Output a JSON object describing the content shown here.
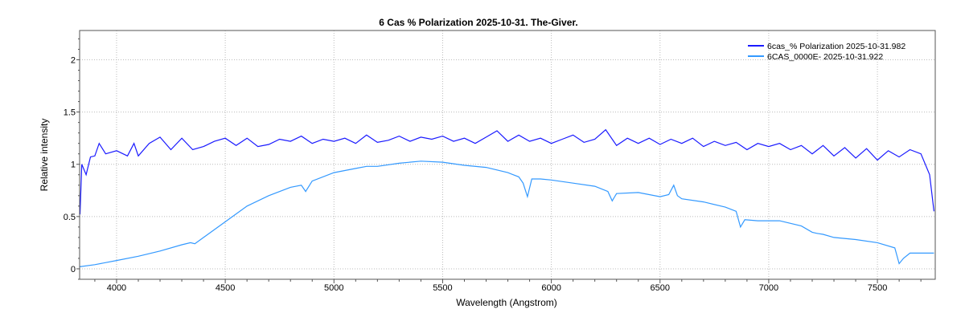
{
  "chart_data": {
    "type": "line",
    "title": "6 Cas  % Polarization  2025-10-31.  The-Giver.",
    "xlabel": "Wavelength (Angstrom)",
    "ylabel": "Relative intensity",
    "xlim": [
      3830,
      7766
    ],
    "ylim": [
      -0.1,
      2.28
    ],
    "xticks": [
      4000,
      4500,
      5000,
      5500,
      6000,
      6500,
      7000,
      7500
    ],
    "yticks": [
      0,
      0.5,
      1,
      1.5,
      2
    ],
    "ytick_labels": [
      "0",
      "0.5",
      "1",
      "1.5",
      "2"
    ],
    "grid": true,
    "legend_position": "top-right",
    "series": [
      {
        "name": "6cas_% Polarization  2025-10-31.982",
        "color": "#1a1aff",
        "x": [
          3832,
          3840,
          3860,
          3880,
          3900,
          3920,
          3950,
          4000,
          4050,
          4080,
          4100,
          4150,
          4200,
          4250,
          4300,
          4350,
          4400,
          4450,
          4500,
          4550,
          4600,
          4650,
          4700,
          4750,
          4800,
          4850,
          4900,
          4950,
          5000,
          5050,
          5100,
          5150,
          5200,
          5250,
          5300,
          5350,
          5400,
          5450,
          5500,
          5550,
          5600,
          5650,
          5700,
          5750,
          5800,
          5850,
          5900,
          5950,
          6000,
          6050,
          6100,
          6150,
          6200,
          6250,
          6300,
          6350,
          6400,
          6450,
          6500,
          6550,
          6600,
          6650,
          6700,
          6750,
          6800,
          6850,
          6900,
          6950,
          7000,
          7050,
          7100,
          7150,
          7200,
          7250,
          7300,
          7350,
          7400,
          7450,
          7500,
          7550,
          7600,
          7650,
          7700,
          7740,
          7760
        ],
        "y": [
          0.52,
          1.0,
          0.9,
          1.07,
          1.08,
          1.2,
          1.1,
          1.13,
          1.08,
          1.2,
          1.08,
          1.2,
          1.26,
          1.14,
          1.25,
          1.14,
          1.17,
          1.22,
          1.25,
          1.18,
          1.25,
          1.17,
          1.19,
          1.24,
          1.22,
          1.27,
          1.2,
          1.24,
          1.22,
          1.25,
          1.2,
          1.28,
          1.21,
          1.23,
          1.27,
          1.22,
          1.26,
          1.24,
          1.27,
          1.22,
          1.25,
          1.2,
          1.26,
          1.32,
          1.22,
          1.28,
          1.22,
          1.25,
          1.2,
          1.24,
          1.28,
          1.21,
          1.24,
          1.33,
          1.18,
          1.25,
          1.2,
          1.25,
          1.19,
          1.24,
          1.2,
          1.25,
          1.17,
          1.22,
          1.18,
          1.21,
          1.14,
          1.2,
          1.17,
          1.2,
          1.14,
          1.18,
          1.1,
          1.18,
          1.08,
          1.16,
          1.06,
          1.15,
          1.04,
          1.13,
          1.07,
          1.14,
          1.1,
          0.9,
          0.55
        ]
      },
      {
        "name": "6CAS_0000E-  2025-10-31.922",
        "color": "#3399ff",
        "x": [
          3830,
          3900,
          4000,
          4100,
          4200,
          4300,
          4340,
          4360,
          4400,
          4500,
          4600,
          4700,
          4800,
          4850,
          4870,
          4900,
          5000,
          5100,
          5150,
          5200,
          5300,
          5400,
          5500,
          5600,
          5700,
          5800,
          5850,
          5870,
          5890,
          5910,
          5950,
          6000,
          6100,
          6200,
          6260,
          6280,
          6300,
          6400,
          6500,
          6540,
          6563,
          6580,
          6600,
          6700,
          6800,
          6850,
          6870,
          6890,
          6950,
          7050,
          7150,
          7200,
          7220,
          7250,
          7300,
          7400,
          7500,
          7580,
          7600,
          7620,
          7650,
          7700,
          7760
        ],
        "y": [
          0.02,
          0.04,
          0.08,
          0.12,
          0.17,
          0.23,
          0.25,
          0.24,
          0.3,
          0.45,
          0.6,
          0.7,
          0.78,
          0.8,
          0.74,
          0.84,
          0.92,
          0.96,
          0.98,
          0.98,
          1.01,
          1.03,
          1.02,
          0.99,
          0.97,
          0.92,
          0.88,
          0.82,
          0.69,
          0.86,
          0.86,
          0.85,
          0.82,
          0.79,
          0.74,
          0.65,
          0.72,
          0.73,
          0.69,
          0.71,
          0.8,
          0.7,
          0.67,
          0.64,
          0.59,
          0.55,
          0.4,
          0.47,
          0.46,
          0.46,
          0.41,
          0.35,
          0.34,
          0.33,
          0.3,
          0.28,
          0.25,
          0.2,
          0.05,
          0.1,
          0.15,
          0.15,
          0.15
        ]
      }
    ]
  }
}
